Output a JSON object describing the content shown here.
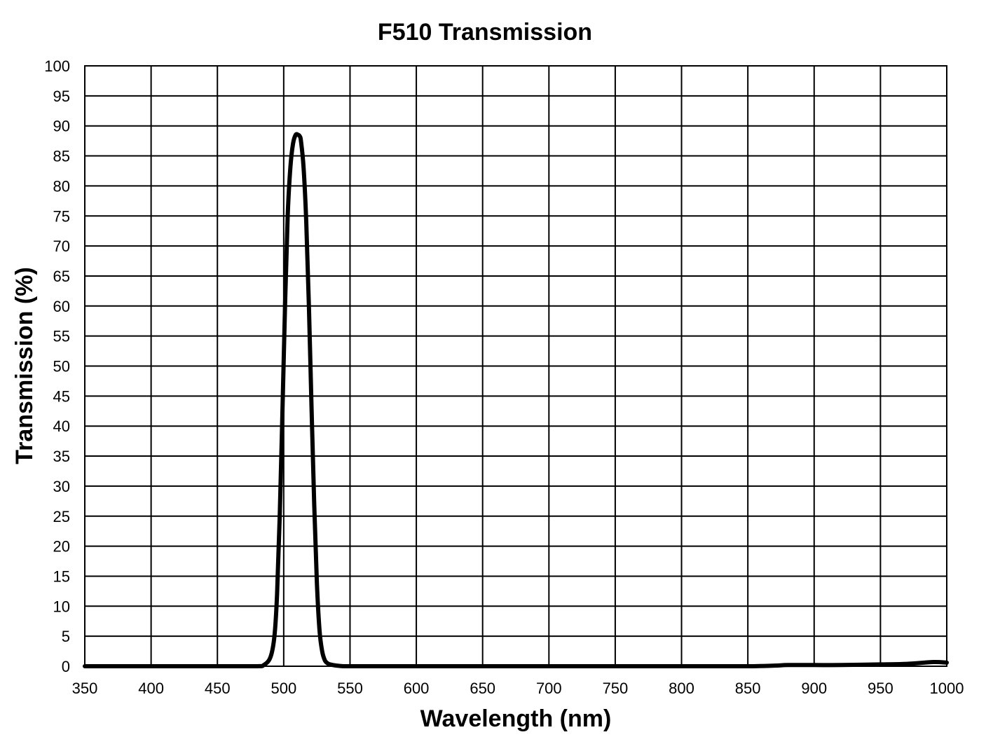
{
  "chart_data": {
    "type": "line",
    "title": "F510 Transmission",
    "xlabel": "Wavelength (nm)",
    "ylabel": "Transmission (%)",
    "xlim": [
      350,
      1000
    ],
    "ylim": [
      0,
      100
    ],
    "x_ticks": [
      "350",
      "400",
      "450",
      "500",
      "550",
      "600",
      "650",
      "700",
      "750",
      "800",
      "850",
      "900",
      "950",
      "1000"
    ],
    "y_ticks": [
      "0",
      "5",
      "10",
      "15",
      "20",
      "25",
      "30",
      "35",
      "40",
      "45",
      "50",
      "55",
      "60",
      "65",
      "70",
      "75",
      "80",
      "85",
      "90",
      "95",
      "100"
    ],
    "grid": true,
    "line_color": "#000000",
    "series": [
      {
        "x": [
          350,
          400,
          450,
          480,
          485,
          490,
          493,
          495,
          497,
          499,
          501,
          503,
          505,
          507,
          509,
          511,
          512,
          513,
          515,
          517,
          519,
          521,
          523,
          525,
          527,
          529,
          531,
          533,
          535,
          540,
          545,
          550,
          600,
          650,
          700,
          750,
          800,
          850,
          870,
          880,
          900,
          920,
          950,
          970,
          990,
          1000
        ],
        "y": [
          0,
          0,
          0,
          0,
          0.2,
          1.5,
          5,
          12,
          25,
          42,
          60,
          75,
          83,
          87,
          88.5,
          88.5,
          88.3,
          87.5,
          83,
          74,
          60,
          43,
          27,
          14,
          6,
          2.5,
          1,
          0.5,
          0.3,
          0.1,
          0,
          0,
          0,
          0,
          0,
          0,
          0,
          0,
          0.1,
          0.2,
          0.2,
          0.2,
          0.3,
          0.4,
          0.7,
          0.6
        ]
      }
    ]
  }
}
